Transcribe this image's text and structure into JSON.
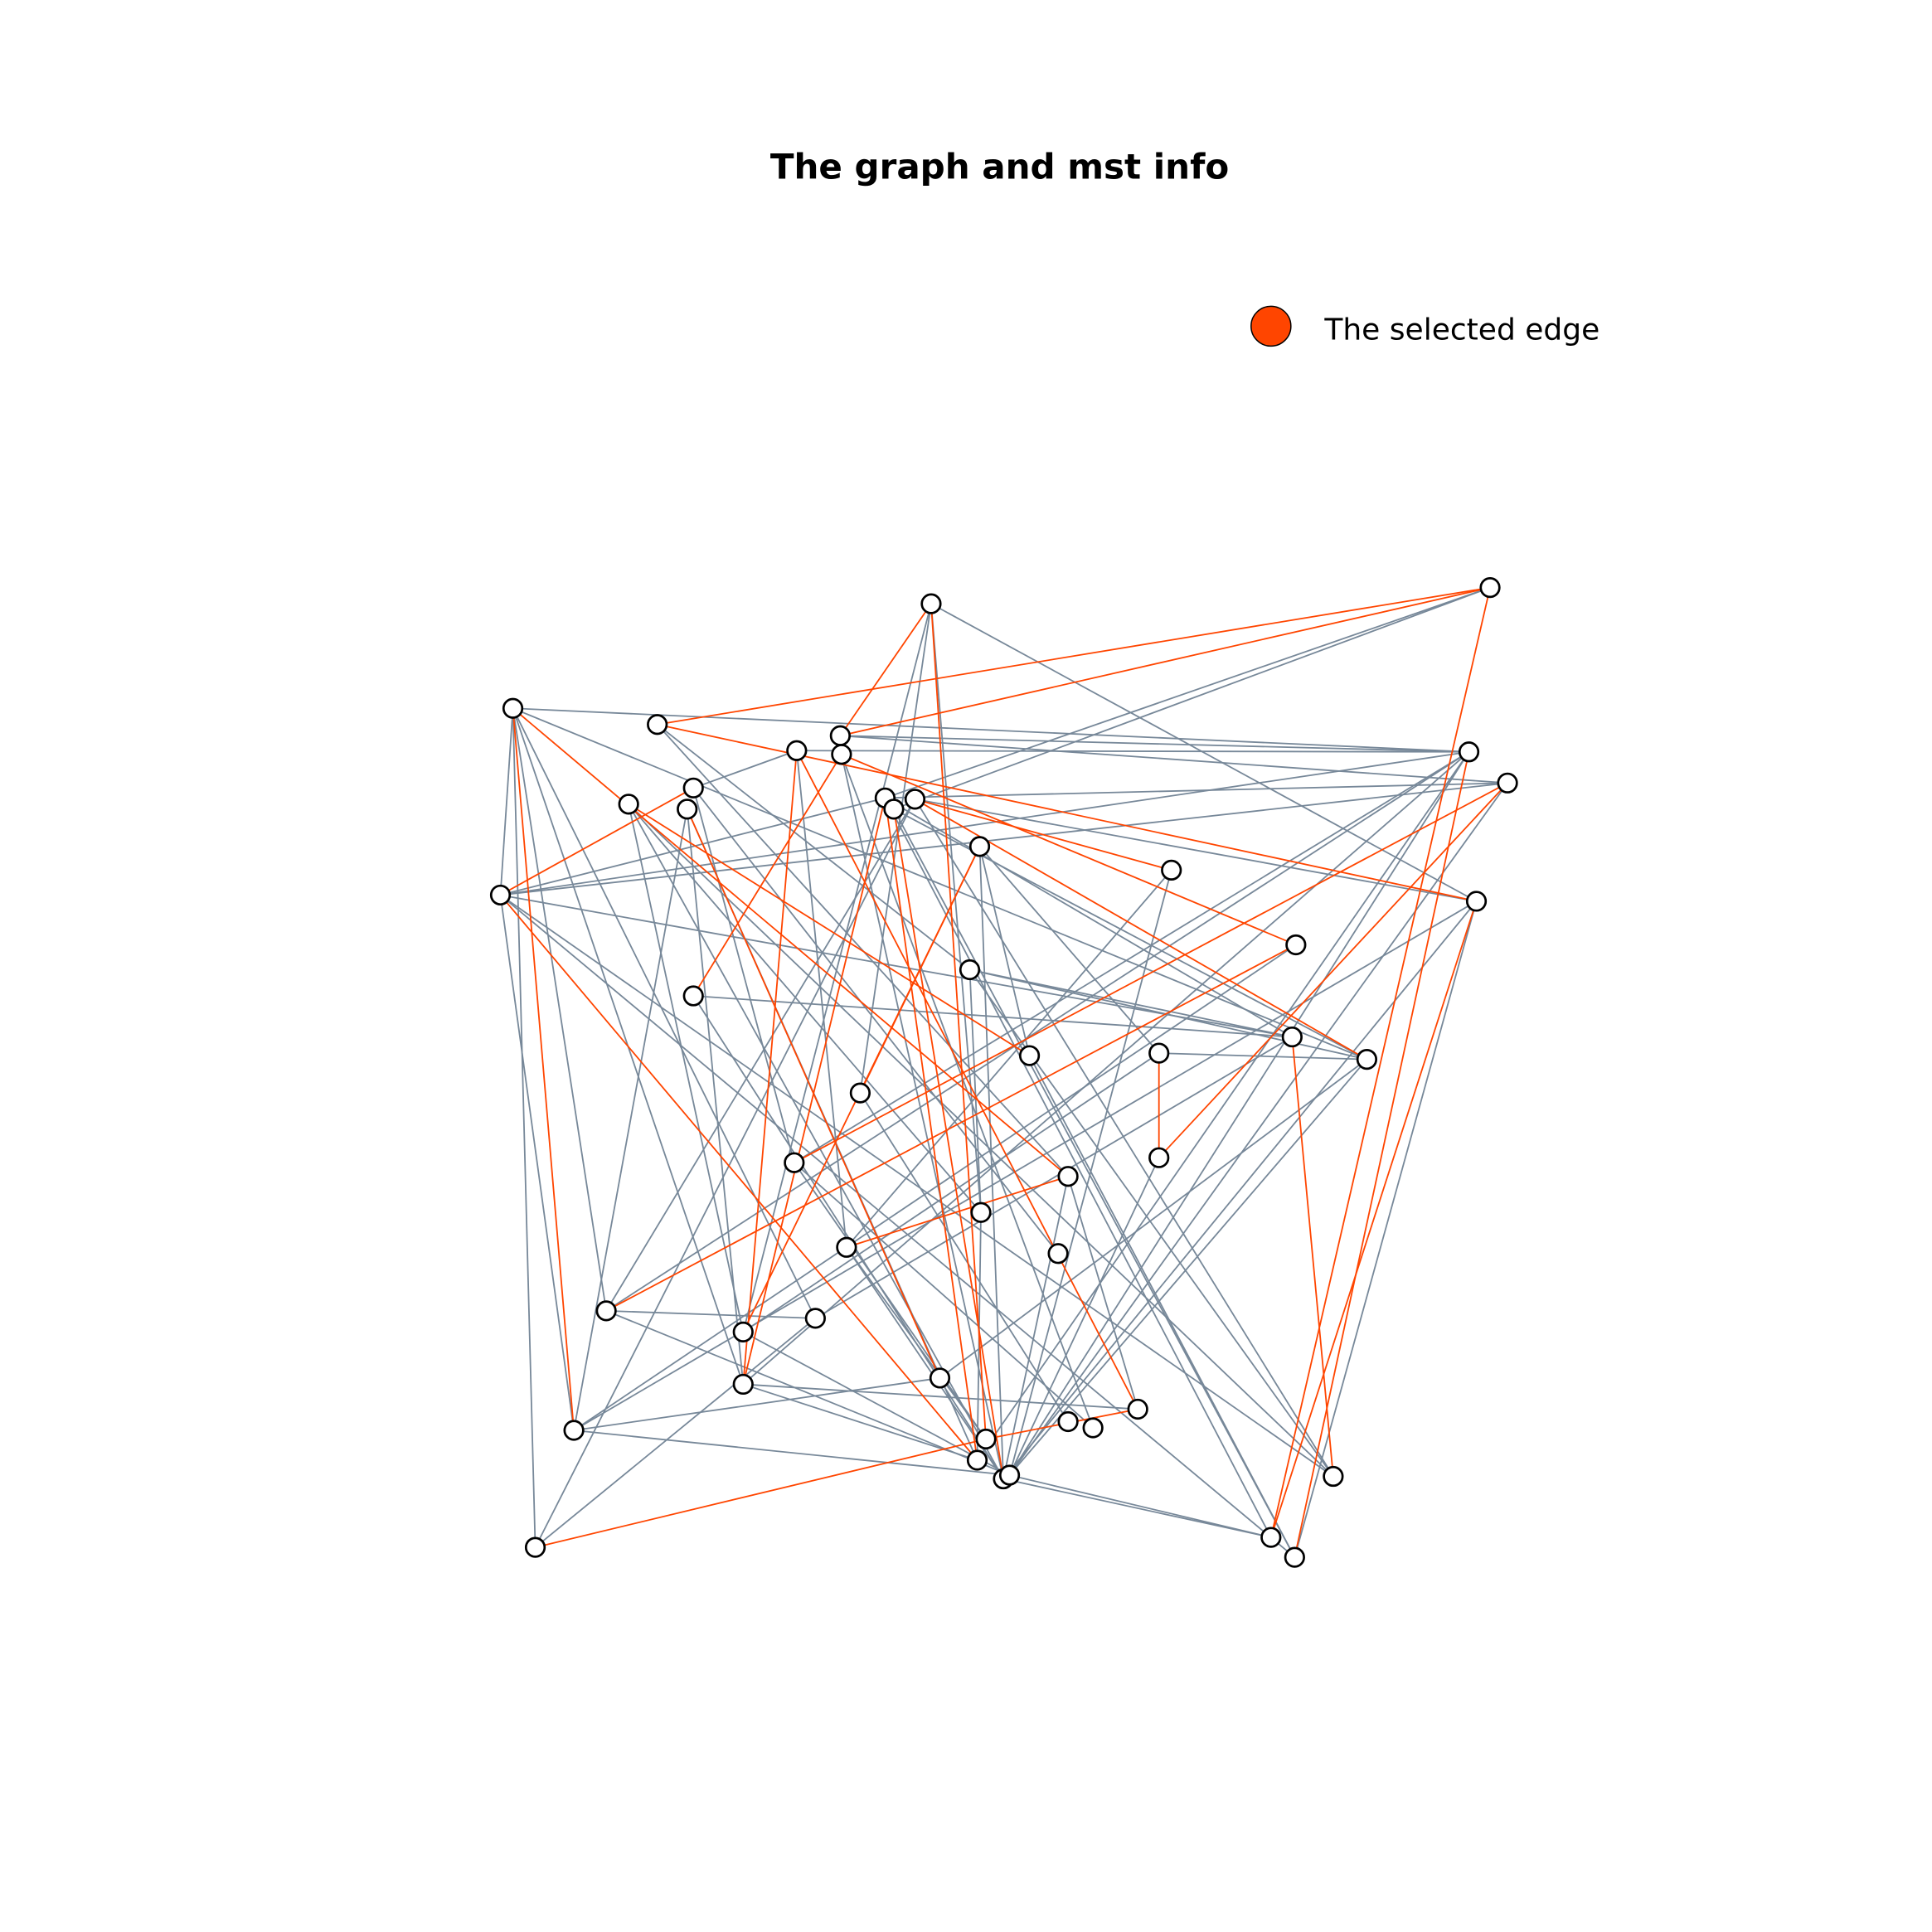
{
  "title": "The graph and mst info",
  "legend": {
    "label": "The selected edge"
  }
}
